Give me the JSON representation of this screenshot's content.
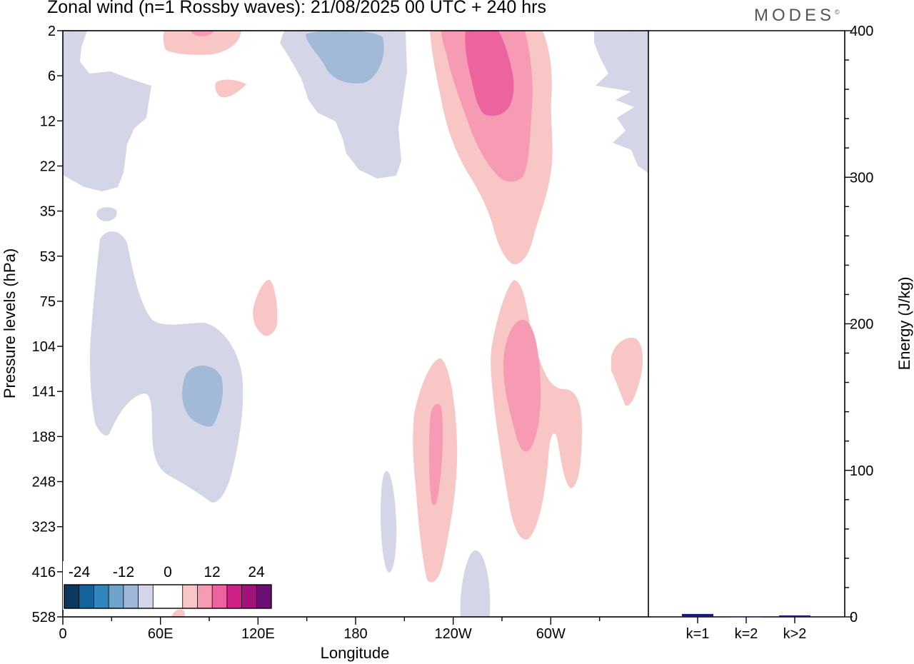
{
  "title": "Zonal wind (n=1 Rossby waves):  21/08/2025  00 UTC  + 240 hrs",
  "brand": "MODES",
  "brand_mark": "©",
  "chart_data": [
    {
      "type": "contour",
      "variable": "Zonal wind (n=1 Rossby waves)",
      "xlabel": "Longitude",
      "ylabel": "Pressure levels (hPa)",
      "x_ticks": [
        "0",
        "60E",
        "120E",
        "180",
        "120W",
        "60W"
      ],
      "y_ticks": [
        "2",
        "6",
        "12",
        "22",
        "35",
        "53",
        "75",
        "104",
        "141",
        "188",
        "248",
        "323",
        "416",
        "528"
      ],
      "colorbar": {
        "labels": [
          "-24",
          "-12",
          "0",
          "12",
          "24"
        ],
        "colors": [
          "#0c3a5e",
          "#14639a",
          "#3186bd",
          "#6ea4cc",
          "#9db8d8",
          "#d4d6e8",
          "#ffffff",
          "#ffffff",
          "#f9c6c6",
          "#f79bb4",
          "#ec63a0",
          "#cf2088",
          "#a1127a",
          "#6c0f72"
        ]
      },
      "regions": [
        {
          "name": "weak westward wind, 0-60E upper levels",
          "level": -4
        },
        {
          "name": "moderate westward wind near 180 top",
          "level": -8
        },
        {
          "name": "weak westward wind, lower troposphere 30E-100E",
          "level": -4
        },
        {
          "name": "moderate westward wind near 90E 141 hPa",
          "level": -8
        },
        {
          "name": "weak eastward wind 120W-60W upper levels",
          "level": 4
        },
        {
          "name": "moderate eastward wind 120W-60W upper levels",
          "level": 8
        },
        {
          "name": "strong eastward wind near 100W 6 hPa",
          "level": 12
        },
        {
          "name": "eastward wind 60W-120W lower troposphere",
          "level": 4
        },
        {
          "name": "moderate eastward wind near 70W 141 hPa",
          "level": 8
        }
      ]
    },
    {
      "type": "bar",
      "title": "",
      "categories": [
        "k=1",
        "k=2",
        "k>2"
      ],
      "values": [
        2,
        0,
        1
      ],
      "ylabel": "Energy (J/kg)",
      "ylim": [
        0,
        400
      ],
      "y_ticks": [
        "0",
        "100",
        "200",
        "300",
        "400"
      ],
      "bar_color": "#1a1a7a"
    }
  ]
}
